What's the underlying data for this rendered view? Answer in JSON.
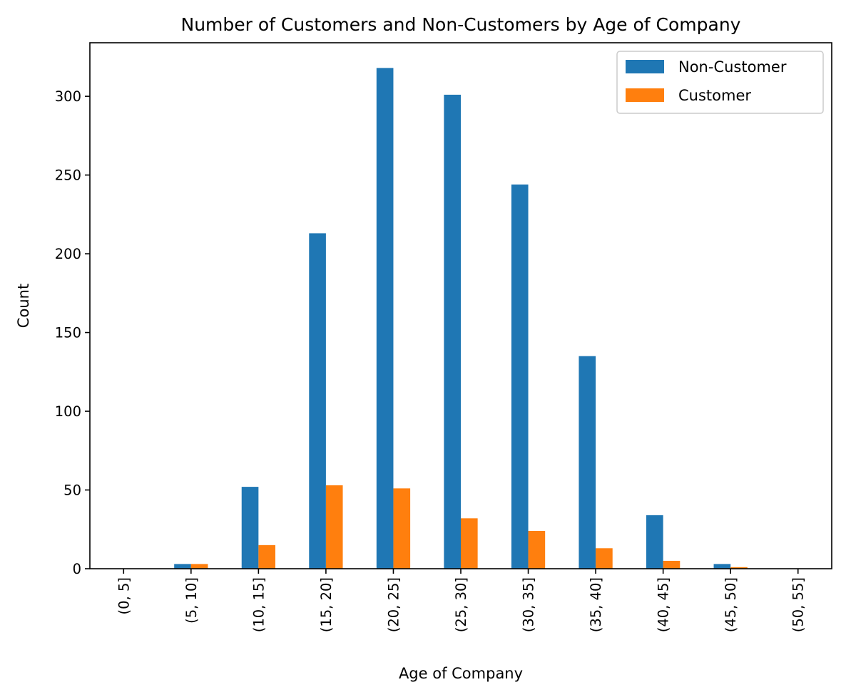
{
  "chart_data": {
    "type": "bar",
    "title": "Number of Customers and Non-Customers by Age of Company",
    "xlabel": "Age of Company",
    "ylabel": "Count",
    "categories": [
      "(0, 5]",
      "(5, 10]",
      "(10, 15]",
      "(15, 20]",
      "(20, 25]",
      "(25, 30]",
      "(30, 35]",
      "(35, 40]",
      "(40, 45]",
      "(45, 50]",
      "(50, 55]"
    ],
    "series": [
      {
        "name": "Non-Customer",
        "color": "#1f77b4",
        "values": [
          0,
          3,
          52,
          213,
          318,
          301,
          244,
          135,
          34,
          3,
          0
        ]
      },
      {
        "name": "Customer",
        "color": "#ff7f0e",
        "values": [
          0,
          3,
          15,
          53,
          51,
          32,
          24,
          13,
          5,
          1,
          0
        ]
      }
    ],
    "yticks": [
      0,
      50,
      100,
      150,
      200,
      250,
      300
    ],
    "ylim": [
      0,
      334
    ],
    "grid": false,
    "legend_position": "top-right",
    "tick_rotation": 90
  }
}
